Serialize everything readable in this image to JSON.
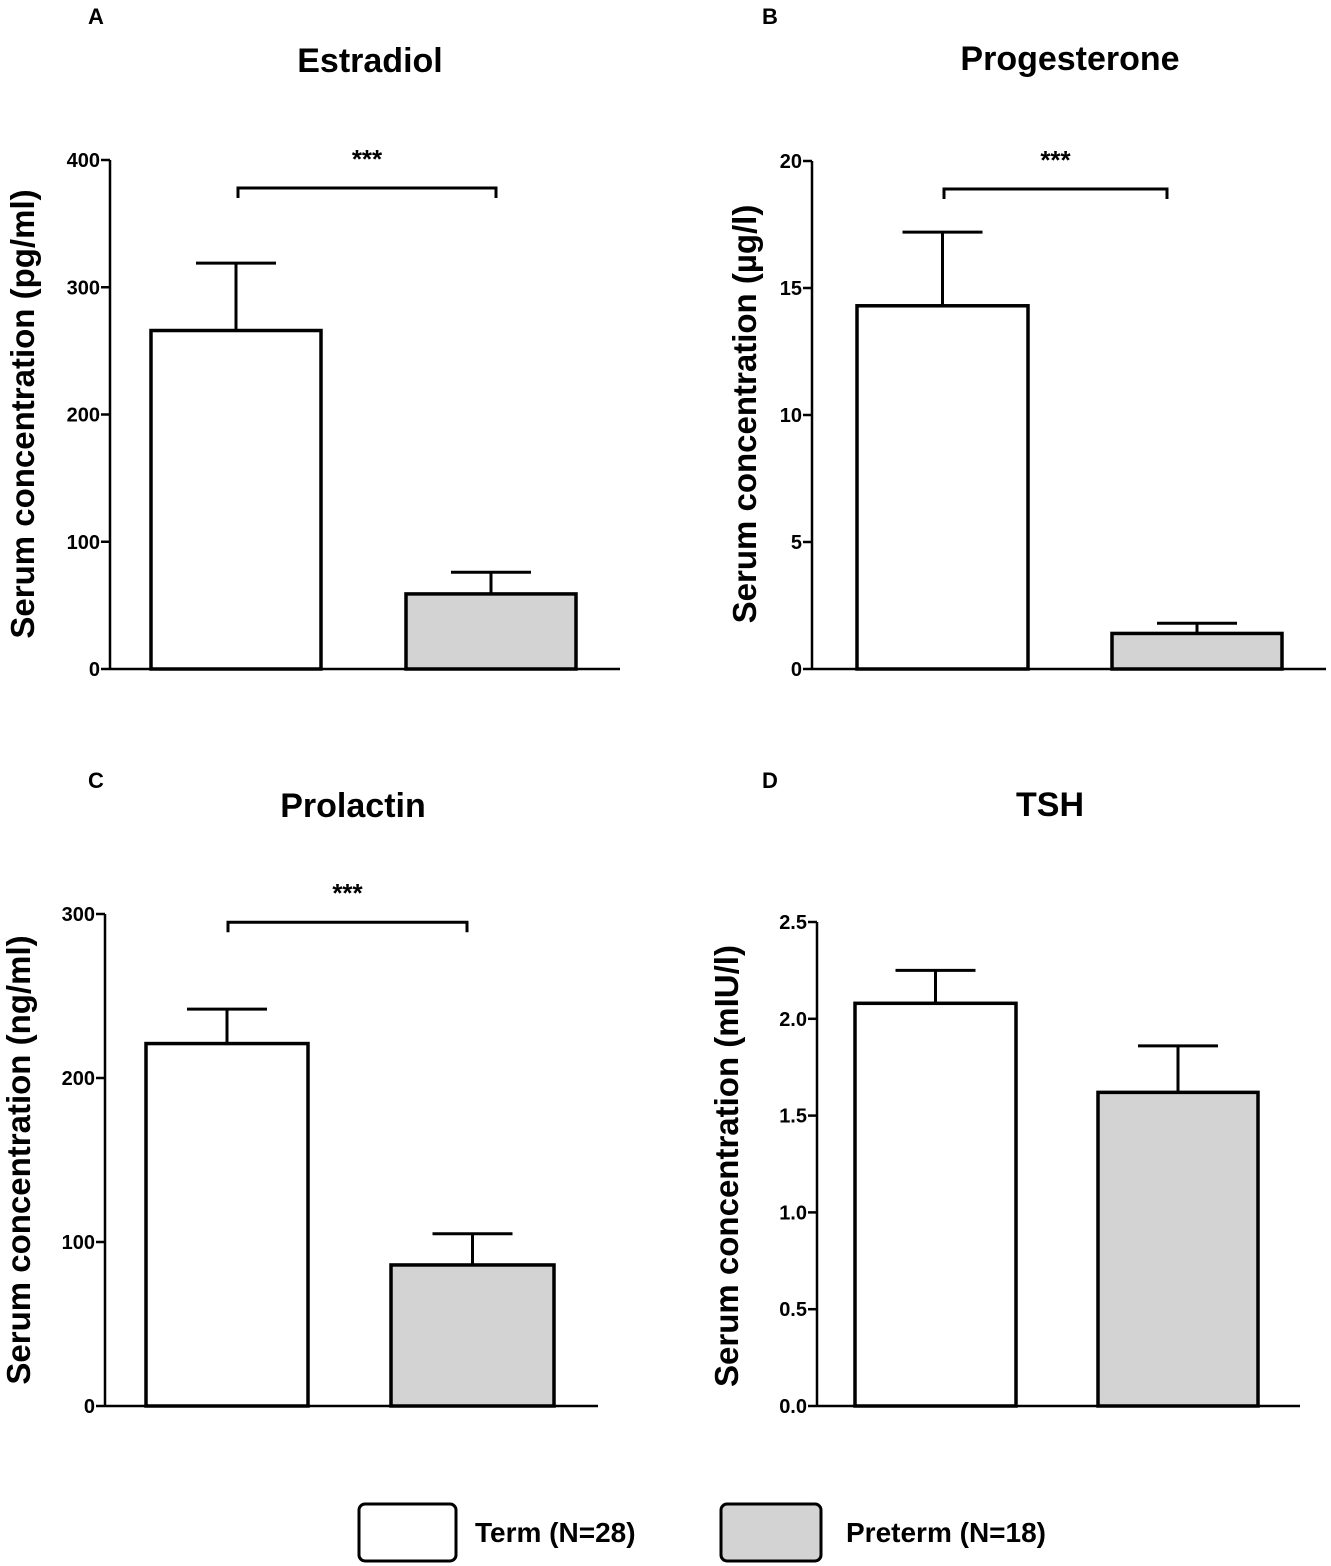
{
  "chart_data": [
    {
      "panel": "A",
      "type": "bar",
      "title": "Estradiol",
      "ylabel": "Serum concentration (pg/ml)",
      "categories": [
        "Term (N=28)",
        "Preterm (N=18)"
      ],
      "values": [
        266,
        59
      ],
      "errors": [
        53,
        17
      ],
      "ylim": [
        0,
        400
      ],
      "yticks": [
        0,
        100,
        200,
        300,
        400
      ],
      "ytick_labels": [
        "0",
        "100",
        "200",
        "300",
        "400"
      ],
      "significance": "***",
      "significance_y": 378
    },
    {
      "panel": "B",
      "type": "bar",
      "title": "Progesterone",
      "ylabel": "Serum concentration (µg/l)",
      "categories": [
        "Term (N=28)",
        "Preterm (N=18)"
      ],
      "values": [
        14.3,
        1.4
      ],
      "errors": [
        2.9,
        0.4
      ],
      "ylim": [
        0,
        20
      ],
      "yticks": [
        0,
        5,
        10,
        15,
        20
      ],
      "ytick_labels": [
        "0",
        "5",
        "10",
        "15",
        "20"
      ],
      "significance": "***",
      "significance_y": 18.9
    },
    {
      "panel": "C",
      "type": "bar",
      "title": "Prolactin",
      "ylabel": "Serum concentration (ng/ml)",
      "categories": [
        "Term (N=28)",
        "Preterm (N=18)"
      ],
      "values": [
        221,
        86
      ],
      "errors": [
        21,
        19
      ],
      "ylim": [
        0,
        300
      ],
      "yticks": [
        0,
        100,
        200,
        300
      ],
      "ytick_labels": [
        "0",
        "100",
        "200",
        "300"
      ],
      "significance": "***",
      "significance_y": 295
    },
    {
      "panel": "D",
      "type": "bar",
      "title": "TSH",
      "ylabel": "Serum concentration (mIU/l)",
      "categories": [
        "Term (N=28)",
        "Preterm (N=18)"
      ],
      "values": [
        2.08,
        1.62
      ],
      "errors": [
        0.17,
        0.24
      ],
      "ylim": [
        0,
        2.5
      ],
      "yticks": [
        0,
        0.5,
        1.0,
        1.5,
        2.0,
        2.5
      ],
      "ytick_labels": [
        "0.0",
        "0.5",
        "1.0",
        "1.5",
        "2.0",
        "2.5"
      ],
      "significance": "",
      "significance_y": null
    }
  ],
  "legend": {
    "items": [
      {
        "label": "Term (N=28)",
        "color": "#ffffff"
      },
      {
        "label": "Preterm (N=18)",
        "color": "#d3d3d3"
      }
    ]
  },
  "colors": {
    "term": "#ffffff",
    "preterm": "#d3d3d3",
    "stroke": "#000000"
  }
}
